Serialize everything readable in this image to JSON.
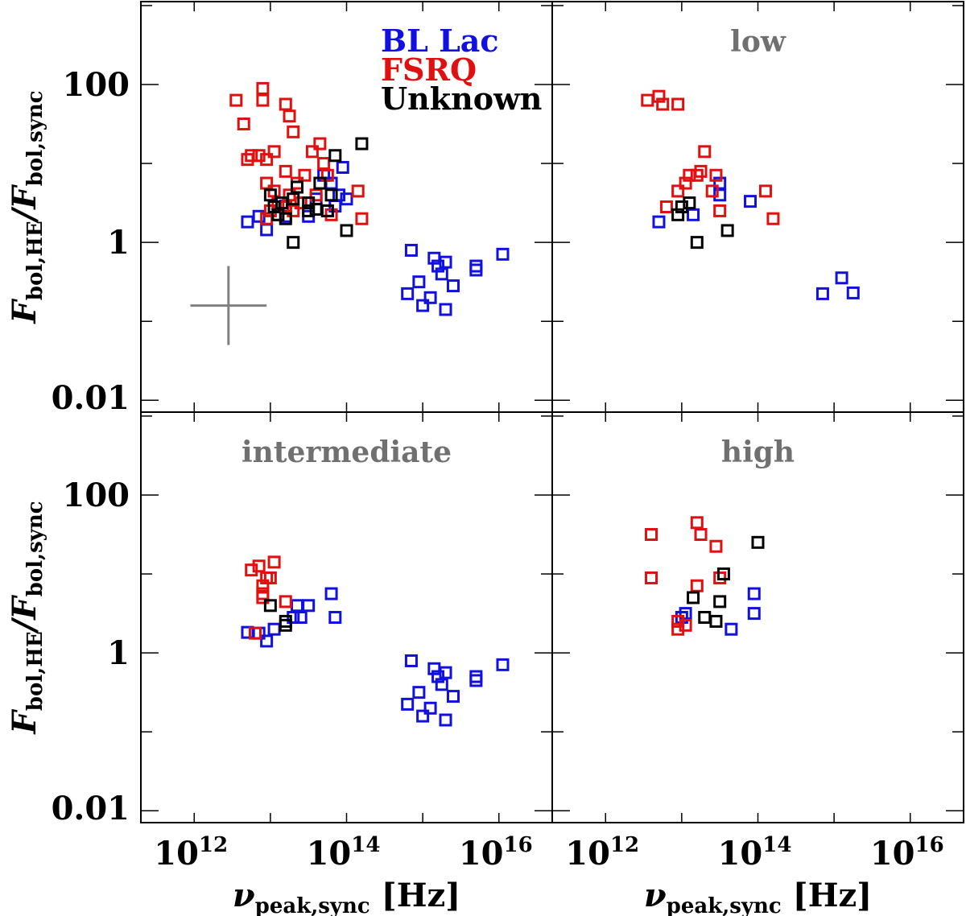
{
  "chart_data": {
    "type": "scatter",
    "layout": "2x2 grid, shared axes",
    "xlabel": "νpeak,sync [Hz]",
    "xlabel_main": "ν",
    "xlabel_sub": "peak,sync",
    "xlabel_unit": "[Hz]",
    "ylabel": "Fbol,HE/Fbol,sync",
    "ylabel_parts": [
      "F",
      "bol,HE",
      "/F",
      "bol,sync"
    ],
    "xscale": "log",
    "yscale": "log",
    "xlim_log10": [
      11.3,
      16.7
    ],
    "ylim_log10": [
      -2.15,
      3.05
    ],
    "x_ticks": [
      {
        "exp": 12,
        "base": "10",
        "sup": "12"
      },
      {
        "exp": 14,
        "base": "10",
        "sup": "14"
      },
      {
        "exp": 16,
        "base": "10",
        "sup": "16"
      }
    ],
    "y_ticks": [
      {
        "exp": 2,
        "label": "100"
      },
      {
        "exp": 0,
        "label": "1"
      },
      {
        "exp": -2,
        "label": "0.01"
      }
    ],
    "legend": [
      {
        "label": "BL Lac",
        "color": "#1010e0"
      },
      {
        "label": "FSRQ",
        "color": "#e01010"
      },
      {
        "label": "Unknown",
        "color": "#000000"
      }
    ],
    "series_colors": {
      "bllac": "#1010e0",
      "fsrq": "#e01010",
      "unknown": "#000000"
    },
    "error_bar_example": {
      "center": [
        12.45,
        -0.8
      ],
      "x_halfwidth": 0.5,
      "y_halfwidth": 0.5,
      "color": "#808080"
    },
    "panels": [
      {
        "title": "",
        "position": "top-left",
        "bllac": [
          [
            12.7,
            0.26
          ],
          [
            12.85,
            0.33
          ],
          [
            12.95,
            0.16
          ],
          [
            13.2,
            0.46
          ],
          [
            13.2,
            0.33
          ],
          [
            13.5,
            0.33
          ],
          [
            13.6,
            0.55
          ],
          [
            13.8,
            0.75
          ],
          [
            13.85,
            0.46
          ],
          [
            13.9,
            0.6
          ],
          [
            14.0,
            0.55
          ],
          [
            13.7,
            0.85
          ],
          [
            13.95,
            0.95
          ],
          [
            14.85,
            -0.1
          ],
          [
            14.95,
            -0.5
          ],
          [
            15.15,
            -0.2
          ],
          [
            15.2,
            -0.3
          ],
          [
            15.25,
            -0.4
          ],
          [
            15.3,
            -0.25
          ],
          [
            15.4,
            -0.55
          ],
          [
            15.1,
            -0.7
          ],
          [
            15.0,
            -0.8
          ],
          [
            14.8,
            -0.65
          ],
          [
            15.3,
            -0.85
          ],
          [
            15.7,
            -0.3
          ],
          [
            15.7,
            -0.35
          ],
          [
            16.05,
            -0.15
          ]
        ],
        "fsrq": [
          [
            12.55,
            1.8
          ],
          [
            12.65,
            1.5
          ],
          [
            12.7,
            1.05
          ],
          [
            12.75,
            1.1
          ],
          [
            12.85,
            1.1
          ],
          [
            12.9,
            1.95
          ],
          [
            12.9,
            1.8
          ],
          [
            12.95,
            1.05
          ],
          [
            13.05,
            1.15
          ],
          [
            12.95,
            0.75
          ],
          [
            13.05,
            0.65
          ],
          [
            13.0,
            0.4
          ],
          [
            13.1,
            0.35
          ],
          [
            13.2,
            1.75
          ],
          [
            13.25,
            1.6
          ],
          [
            13.3,
            1.4
          ],
          [
            13.2,
            0.9
          ],
          [
            13.25,
            0.6
          ],
          [
            13.35,
            0.75
          ],
          [
            13.4,
            0.5
          ],
          [
            13.45,
            0.85
          ],
          [
            13.55,
            1.15
          ],
          [
            13.65,
            1.25
          ],
          [
            13.7,
            1.0
          ],
          [
            13.75,
            0.85
          ],
          [
            13.75,
            0.4
          ],
          [
            14.15,
            0.65
          ],
          [
            14.2,
            0.3
          ],
          [
            13.6,
            0.6
          ],
          [
            13.8,
            0.35
          ],
          [
            12.95,
            0.3
          ],
          [
            13.1,
            0.5
          ],
          [
            13.2,
            0.45
          ],
          [
            13.3,
            0.4
          ]
        ],
        "unknown": [
          [
            13.0,
            0.6
          ],
          [
            13.05,
            0.45
          ],
          [
            13.1,
            0.35
          ],
          [
            13.15,
            0.5
          ],
          [
            13.2,
            0.3
          ],
          [
            13.3,
            0.55
          ],
          [
            13.35,
            0.7
          ],
          [
            13.5,
            0.4
          ],
          [
            13.6,
            0.42
          ],
          [
            13.75,
            0.4
          ],
          [
            13.8,
            0.6
          ],
          [
            13.85,
            1.1
          ],
          [
            14.0,
            0.15
          ],
          [
            13.3,
            0.0
          ],
          [
            14.2,
            1.25
          ],
          [
            13.5,
            0.5
          ],
          [
            13.65,
            0.75
          ]
        ]
      },
      {
        "title": "low",
        "position": "top-right",
        "bllac": [
          [
            12.7,
            0.26
          ],
          [
            13.15,
            0.35
          ],
          [
            13.5,
            0.6
          ],
          [
            13.5,
            0.75
          ],
          [
            13.9,
            0.52
          ],
          [
            14.85,
            -0.65
          ],
          [
            15.1,
            -0.45
          ],
          [
            15.25,
            -0.64
          ]
        ],
        "fsrq": [
          [
            12.55,
            1.8
          ],
          [
            12.7,
            1.85
          ],
          [
            12.75,
            1.75
          ],
          [
            12.95,
            1.75
          ],
          [
            13.3,
            1.15
          ],
          [
            13.45,
            0.85
          ],
          [
            13.25,
            0.9
          ],
          [
            13.2,
            0.85
          ],
          [
            13.1,
            0.85
          ],
          [
            13.05,
            0.75
          ],
          [
            12.95,
            0.65
          ],
          [
            12.8,
            0.45
          ],
          [
            13.4,
            0.65
          ],
          [
            13.5,
            0.4
          ],
          [
            14.1,
            0.65
          ],
          [
            14.2,
            0.3
          ]
        ],
        "unknown": [
          [
            12.95,
            0.35
          ],
          [
            13.0,
            0.45
          ],
          [
            13.1,
            0.5
          ],
          [
            13.2,
            0.0
          ],
          [
            13.6,
            0.15
          ]
        ]
      },
      {
        "title": "intermediate",
        "position": "bottom-left",
        "bllac": [
          [
            12.7,
            0.26
          ],
          [
            12.85,
            0.25
          ],
          [
            12.95,
            0.15
          ],
          [
            13.05,
            0.3
          ],
          [
            13.3,
            0.45
          ],
          [
            13.35,
            0.6
          ],
          [
            13.4,
            0.45
          ],
          [
            13.5,
            0.6
          ],
          [
            13.8,
            0.75
          ],
          [
            13.85,
            0.45
          ],
          [
            14.85,
            -0.1
          ],
          [
            14.95,
            -0.5
          ],
          [
            15.15,
            -0.2
          ],
          [
            15.2,
            -0.3
          ],
          [
            15.25,
            -0.4
          ],
          [
            15.3,
            -0.25
          ],
          [
            15.4,
            -0.55
          ],
          [
            15.1,
            -0.7
          ],
          [
            15.0,
            -0.8
          ],
          [
            14.8,
            -0.65
          ],
          [
            15.3,
            -0.85
          ],
          [
            15.7,
            -0.3
          ],
          [
            15.7,
            -0.35
          ],
          [
            16.05,
            -0.15
          ]
        ],
        "fsrq": [
          [
            12.75,
            1.05
          ],
          [
            12.85,
            1.1
          ],
          [
            12.9,
            0.85
          ],
          [
            12.9,
            0.75
          ],
          [
            12.95,
            0.95
          ],
          [
            13.0,
            0.95
          ],
          [
            13.05,
            1.15
          ],
          [
            12.8,
            0.25
          ],
          [
            13.2,
            0.65
          ],
          [
            12.9,
            0.7
          ]
        ],
        "unknown": [
          [
            13.0,
            0.6
          ],
          [
            13.2,
            0.35
          ],
          [
            13.2,
            0.4
          ]
        ]
      },
      {
        "title": "high",
        "position": "bottom-right",
        "bllac": [
          [
            13.0,
            0.45
          ],
          [
            13.05,
            0.5
          ],
          [
            13.65,
            0.3
          ],
          [
            13.95,
            0.75
          ],
          [
            13.95,
            0.5
          ]
        ],
        "fsrq": [
          [
            12.6,
            1.5
          ],
          [
            12.6,
            0.95
          ],
          [
            12.95,
            0.3
          ],
          [
            13.05,
            0.35
          ],
          [
            13.2,
            0.85
          ],
          [
            13.2,
            1.65
          ],
          [
            13.25,
            1.5
          ],
          [
            13.45,
            1.35
          ],
          [
            13.5,
            0.95
          ],
          [
            12.95,
            0.4
          ]
        ],
        "unknown": [
          [
            13.15,
            0.7
          ],
          [
            13.3,
            0.45
          ],
          [
            13.45,
            0.4
          ],
          [
            13.5,
            0.65
          ],
          [
            13.55,
            1.0
          ],
          [
            14.0,
            1.4
          ]
        ]
      }
    ]
  }
}
